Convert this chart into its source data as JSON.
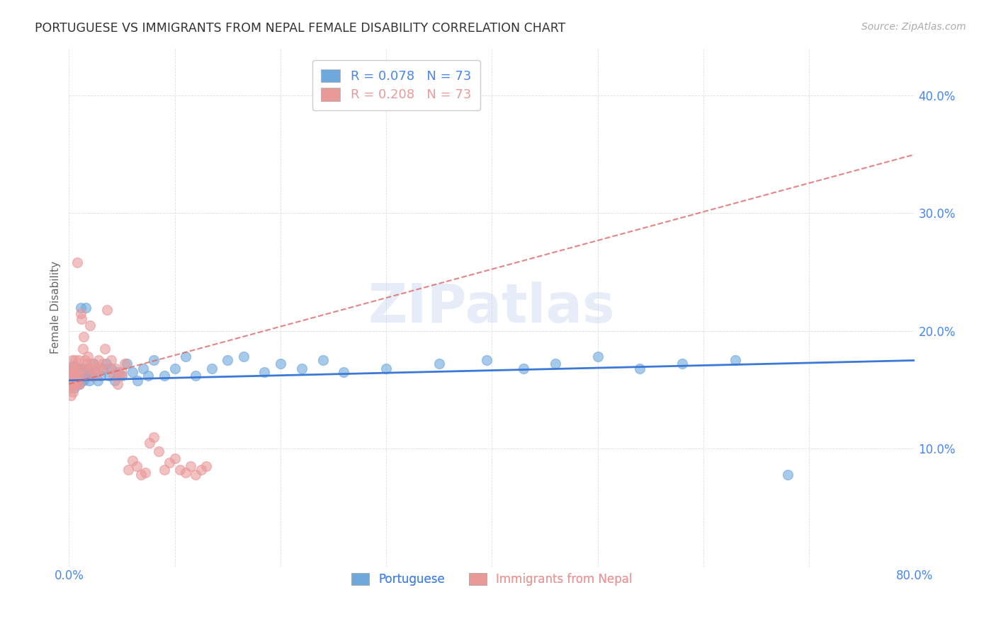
{
  "title": "PORTUGUESE VS IMMIGRANTS FROM NEPAL FEMALE DISABILITY CORRELATION CHART",
  "source": "Source: ZipAtlas.com",
  "ylabel": "Female Disability",
  "watermark": "ZIPatlas",
  "x_min": 0.0,
  "x_max": 0.8,
  "y_min": 0.0,
  "y_max": 0.44,
  "x_ticks": [
    0.0,
    0.1,
    0.2,
    0.3,
    0.4,
    0.5,
    0.6,
    0.7,
    0.8
  ],
  "y_ticks": [
    0.0,
    0.1,
    0.2,
    0.3,
    0.4
  ],
  "legend1_label": "R = 0.078   N = 73",
  "legend2_label": "R = 0.208   N = 73",
  "series1_color": "#6fa8dc",
  "series2_color": "#ea9999",
  "trend1_color": "#3c78d8",
  "trend2_color": "#e06666",
  "axis_color": "#4a86e8",
  "ylabel_color": "#666666",
  "title_color": "#333333",
  "source_color": "#aaaaaa",
  "grid_color": "#dddddd",
  "portuguese_x": [
    0.002,
    0.003,
    0.003,
    0.004,
    0.004,
    0.004,
    0.005,
    0.005,
    0.005,
    0.006,
    0.006,
    0.006,
    0.007,
    0.007,
    0.007,
    0.008,
    0.008,
    0.009,
    0.009,
    0.01,
    0.01,
    0.011,
    0.011,
    0.012,
    0.012,
    0.013,
    0.014,
    0.015,
    0.016,
    0.017,
    0.018,
    0.019,
    0.02,
    0.022,
    0.023,
    0.025,
    0.027,
    0.03,
    0.032,
    0.035,
    0.038,
    0.04,
    0.043,
    0.046,
    0.05,
    0.055,
    0.06,
    0.065,
    0.07,
    0.075,
    0.08,
    0.09,
    0.1,
    0.11,
    0.12,
    0.135,
    0.15,
    0.165,
    0.185,
    0.2,
    0.22,
    0.24,
    0.26,
    0.3,
    0.35,
    0.395,
    0.43,
    0.46,
    0.5,
    0.54,
    0.58,
    0.63,
    0.68
  ],
  "portuguese_y": [
    0.165,
    0.17,
    0.16,
    0.168,
    0.155,
    0.162,
    0.158,
    0.152,
    0.165,
    0.16,
    0.17,
    0.155,
    0.163,
    0.158,
    0.168,
    0.155,
    0.162,
    0.168,
    0.158,
    0.165,
    0.155,
    0.162,
    0.22,
    0.158,
    0.168,
    0.162,
    0.158,
    0.165,
    0.22,
    0.162,
    0.168,
    0.158,
    0.165,
    0.162,
    0.172,
    0.165,
    0.158,
    0.162,
    0.168,
    0.172,
    0.162,
    0.168,
    0.158,
    0.165,
    0.162,
    0.172,
    0.165,
    0.158,
    0.168,
    0.162,
    0.175,
    0.162,
    0.168,
    0.178,
    0.162,
    0.168,
    0.175,
    0.178,
    0.165,
    0.172,
    0.168,
    0.175,
    0.165,
    0.168,
    0.172,
    0.175,
    0.168,
    0.172,
    0.178,
    0.168,
    0.172,
    0.175,
    0.078
  ],
  "nepal_x": [
    0.001,
    0.001,
    0.001,
    0.002,
    0.002,
    0.002,
    0.002,
    0.003,
    0.003,
    0.003,
    0.003,
    0.004,
    0.004,
    0.004,
    0.005,
    0.005,
    0.005,
    0.006,
    0.006,
    0.007,
    0.007,
    0.008,
    0.008,
    0.009,
    0.009,
    0.01,
    0.01,
    0.011,
    0.011,
    0.012,
    0.013,
    0.014,
    0.015,
    0.016,
    0.017,
    0.018,
    0.019,
    0.02,
    0.021,
    0.022,
    0.024,
    0.025,
    0.027,
    0.028,
    0.03,
    0.032,
    0.034,
    0.036,
    0.038,
    0.04,
    0.042,
    0.044,
    0.046,
    0.048,
    0.05,
    0.053,
    0.056,
    0.06,
    0.064,
    0.068,
    0.072,
    0.076,
    0.08,
    0.085,
    0.09,
    0.095,
    0.1,
    0.105,
    0.11,
    0.115,
    0.12,
    0.125,
    0.13
  ],
  "nepal_y": [
    0.16,
    0.155,
    0.165,
    0.168,
    0.158,
    0.152,
    0.145,
    0.162,
    0.155,
    0.168,
    0.175,
    0.158,
    0.162,
    0.148,
    0.162,
    0.168,
    0.155,
    0.175,
    0.158,
    0.168,
    0.162,
    0.258,
    0.155,
    0.162,
    0.175,
    0.168,
    0.155,
    0.215,
    0.162,
    0.21,
    0.185,
    0.195,
    0.175,
    0.168,
    0.172,
    0.178,
    0.168,
    0.205,
    0.162,
    0.172,
    0.168,
    0.162,
    0.168,
    0.175,
    0.168,
    0.172,
    0.185,
    0.218,
    0.168,
    0.175,
    0.162,
    0.168,
    0.155,
    0.162,
    0.165,
    0.172,
    0.082,
    0.09,
    0.085,
    0.078,
    0.08,
    0.105,
    0.11,
    0.098,
    0.082,
    0.088,
    0.092,
    0.082,
    0.08,
    0.085,
    0.078,
    0.082,
    0.085
  ]
}
